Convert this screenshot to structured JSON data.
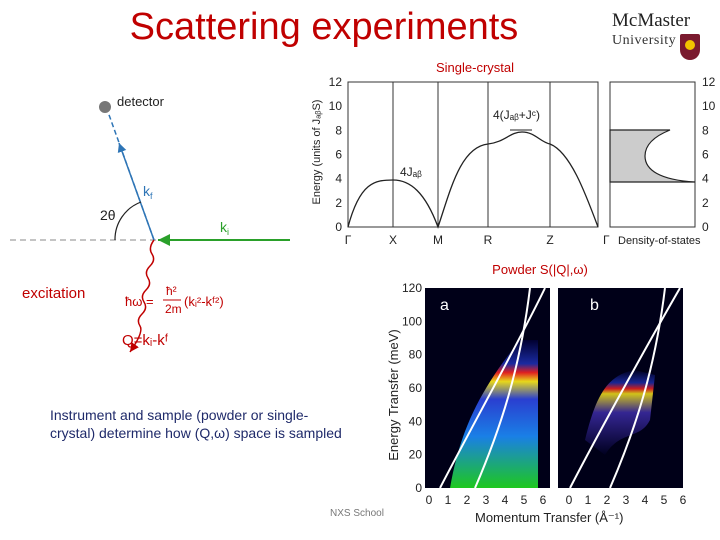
{
  "slide": {
    "title": "Scattering experiments",
    "logo_line1": "McMaster",
    "logo_line2": "University",
    "single_crystal_label": "Single-crystal",
    "powder_label": "Powder S(|Q|,ω)",
    "instrument_text": "Instrument and sample (powder or single-crystal) determine how (Q,ω) space is sampled",
    "footer": "NXS School",
    "colors": {
      "title": "#c00000",
      "instrument_text": "#1f2a6a",
      "kf": "#2e75b6",
      "ki": "#2aa02a",
      "excitation": "#c00000",
      "crest": "#7a1a2e"
    }
  },
  "scattering_diagram": {
    "detector_label": "detector",
    "kf_label": "k",
    "kf_sub": "f",
    "ki_label": "k",
    "ki_sub": "i",
    "angle_label": "2θ",
    "excitation_label": "excitation",
    "energy_eq_lhs": "ħω =",
    "energy_eq_num": "ħ²",
    "energy_eq_den": "2m",
    "energy_eq_rhs": "(kᵢ²-kᶠ²)",
    "momentum_eq": "Q=kᵢ-kᶠ"
  },
  "dispersion_chart": {
    "ylabel": "Energy (units of JₐᵦS)",
    "y_ticks": [
      "0",
      "2",
      "4",
      "6",
      "8",
      "10",
      "12"
    ],
    "x_ticks": [
      "Γ",
      "X",
      "M",
      "R",
      "Z",
      "Γ"
    ],
    "annotation_4jab": "4Jₐᵦ",
    "annotation_4jab_jc": "4(Jₐᵦ+Jᶜ)",
    "dos_label": "Density-of-states",
    "dos_y_ticks": [
      "0",
      "2",
      "4",
      "6",
      "8",
      "10",
      "12"
    ]
  },
  "powder_chart": {
    "ylabel": "Energy Transfer (meV)",
    "xlabel": "Momentum Transfer (Å⁻¹)",
    "y_ticks": [
      "0",
      "20",
      "40",
      "60",
      "80",
      "100",
      "120"
    ],
    "x_ticks_a": [
      "0",
      "1",
      "2",
      "3",
      "4",
      "5",
      "6"
    ],
    "x_ticks_b": [
      "0",
      "1",
      "2",
      "3",
      "4",
      "5",
      "6"
    ],
    "panel_a": "a",
    "panel_b": "b"
  }
}
